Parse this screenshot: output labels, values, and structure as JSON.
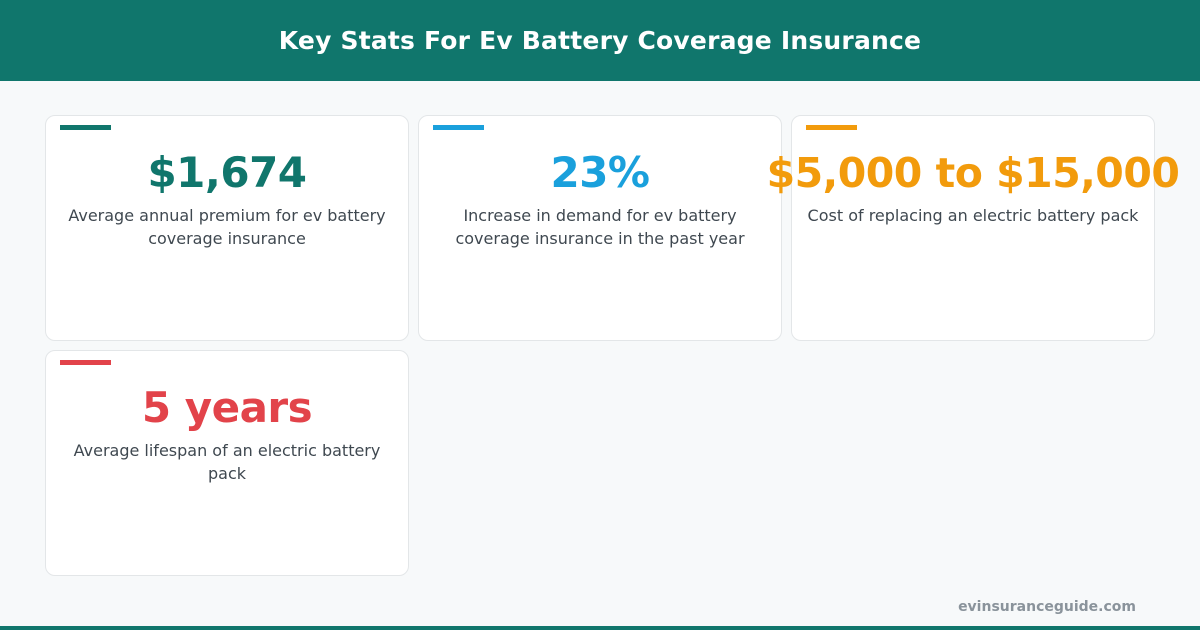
{
  "header": {
    "title": "Key Stats For Ev Battery Coverage Insurance"
  },
  "stats": [
    {
      "value": "$1,674",
      "description": "Average annual premium for ev battery coverage insurance",
      "color": "#10766c"
    },
    {
      "value": "23%",
      "description": "Increase in demand for ev battery coverage insurance in the past year",
      "color": "#1aa0dc"
    },
    {
      "value": "$5,000 to $15,000",
      "description": "Cost of replacing an electric battery pack",
      "color": "#f29b0c"
    },
    {
      "value": "5 years",
      "description": "Average lifespan of an electric battery pack",
      "color": "#e2434a"
    }
  ],
  "footer": {
    "site": "evinsuranceguide.com"
  }
}
